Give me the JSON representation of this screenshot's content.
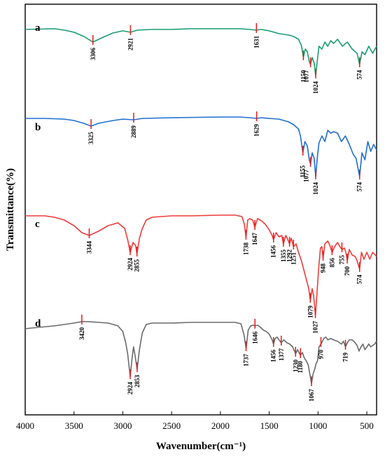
{
  "chart_data": {
    "type": "line",
    "title": "",
    "xlabel": "Wavenumber(cm⁻¹)",
    "ylabel": "Transmittance(%)",
    "xlim": [
      4000,
      400
    ],
    "x_ticks": [
      "4000",
      "3500",
      "3000",
      "2500",
      "2000",
      "1500",
      "1000",
      "500"
    ],
    "grid": false,
    "legend": "none",
    "series": [
      {
        "name": "a",
        "color": "#1a9e6e",
        "peaks": [
          "3306",
          "2921",
          "1631",
          "1150",
          "1077",
          "1024",
          "574"
        ],
        "points": [
          [
            4000,
            12
          ],
          [
            3700,
            11
          ],
          [
            3600,
            13
          ],
          [
            3500,
            16
          ],
          [
            3400,
            22
          ],
          [
            3306,
            30
          ],
          [
            3200,
            23
          ],
          [
            3100,
            17
          ],
          [
            3000,
            14
          ],
          [
            2921,
            16
          ],
          [
            2850,
            13
          ],
          [
            2700,
            12
          ],
          [
            2500,
            12
          ],
          [
            2300,
            11
          ],
          [
            2000,
            11
          ],
          [
            1800,
            11
          ],
          [
            1700,
            12
          ],
          [
            1631,
            13
          ],
          [
            1580,
            12
          ],
          [
            1500,
            14
          ],
          [
            1400,
            18
          ],
          [
            1300,
            20
          ],
          [
            1250,
            22
          ],
          [
            1200,
            26
          ],
          [
            1170,
            35
          ],
          [
            1150,
            52
          ],
          [
            1130,
            40
          ],
          [
            1110,
            44
          ],
          [
            1090,
            58
          ],
          [
            1077,
            62
          ],
          [
            1060,
            52
          ],
          [
            1040,
            60
          ],
          [
            1024,
            78
          ],
          [
            1005,
            54
          ],
          [
            990,
            36
          ],
          [
            960,
            40
          ],
          [
            930,
            30
          ],
          [
            900,
            36
          ],
          [
            870,
            28
          ],
          [
            840,
            32
          ],
          [
            800,
            26
          ],
          [
            750,
            36
          ],
          [
            700,
            30
          ],
          [
            650,
            40
          ],
          [
            600,
            46
          ],
          [
            574,
            62
          ],
          [
            550,
            44
          ],
          [
            520,
            48
          ],
          [
            480,
            36
          ],
          [
            440,
            46
          ],
          [
            400,
            36
          ]
        ]
      },
      {
        "name": "b",
        "color": "#1f6fcf",
        "peaks": [
          "3325",
          "2889",
          "1629",
          "1155",
          "1077",
          "1024",
          "574"
        ],
        "points": [
          [
            4000,
            9
          ],
          [
            3800,
            9
          ],
          [
            3600,
            10
          ],
          [
            3500,
            12
          ],
          [
            3400,
            16
          ],
          [
            3325,
            20
          ],
          [
            3250,
            16
          ],
          [
            3100,
            12
          ],
          [
            3000,
            10
          ],
          [
            2889,
            11
          ],
          [
            2800,
            9
          ],
          [
            2500,
            8
          ],
          [
            2000,
            7
          ],
          [
            1800,
            7
          ],
          [
            1700,
            8
          ],
          [
            1629,
            9
          ],
          [
            1580,
            8
          ],
          [
            1500,
            9
          ],
          [
            1400,
            10
          ],
          [
            1300,
            14
          ],
          [
            1250,
            18
          ],
          [
            1200,
            24
          ],
          [
            1180,
            34
          ],
          [
            1155,
            58
          ],
          [
            1135,
            42
          ],
          [
            1110,
            48
          ],
          [
            1090,
            68
          ],
          [
            1077,
            74
          ],
          [
            1060,
            58
          ],
          [
            1040,
            66
          ],
          [
            1024,
            92
          ],
          [
            1005,
            62
          ],
          [
            990,
            44
          ],
          [
            960,
            34
          ],
          [
            930,
            42
          ],
          [
            900,
            26
          ],
          [
            870,
            30
          ],
          [
            840,
            28
          ],
          [
            800,
            30
          ],
          [
            760,
            42
          ],
          [
            720,
            34
          ],
          [
            680,
            46
          ],
          [
            640,
            60
          ],
          [
            610,
            66
          ],
          [
            574,
            92
          ],
          [
            550,
            58
          ],
          [
            520,
            68
          ],
          [
            490,
            42
          ],
          [
            460,
            56
          ],
          [
            430,
            46
          ],
          [
            400,
            54
          ]
        ]
      },
      {
        "name": "c",
        "color": "#ee3b3b",
        "peaks": [
          "3344",
          "2924",
          "2855",
          "1738",
          "1647",
          "1456",
          "1355",
          "1292",
          "1251",
          "1079",
          "1027",
          "948",
          "856",
          "755",
          "700",
          "574"
        ],
        "points": [
          [
            4000,
            8
          ],
          [
            3800,
            8
          ],
          [
            3700,
            10
          ],
          [
            3600,
            14
          ],
          [
            3500,
            22
          ],
          [
            3420,
            32
          ],
          [
            3344,
            36
          ],
          [
            3250,
            30
          ],
          [
            3150,
            22
          ],
          [
            3050,
            18
          ],
          [
            2980,
            26
          ],
          [
            2950,
            42
          ],
          [
            2924,
            60
          ],
          [
            2895,
            46
          ],
          [
            2870,
            50
          ],
          [
            2855,
            62
          ],
          [
            2830,
            40
          ],
          [
            2800,
            26
          ],
          [
            2760,
            14
          ],
          [
            2700,
            10
          ],
          [
            2500,
            8
          ],
          [
            2300,
            8
          ],
          [
            2000,
            7
          ],
          [
            1850,
            7
          ],
          [
            1780,
            9
          ],
          [
            1755,
            20
          ],
          [
            1738,
            38
          ],
          [
            1720,
            14
          ],
          [
            1700,
            12
          ],
          [
            1670,
            14
          ],
          [
            1647,
            24
          ],
          [
            1620,
            12
          ],
          [
            1580,
            15
          ],
          [
            1540,
            20
          ],
          [
            1500,
            28
          ],
          [
            1470,
            36
          ],
          [
            1456,
            42
          ],
          [
            1430,
            32
          ],
          [
            1400,
            38
          ],
          [
            1370,
            36
          ],
          [
            1355,
            48
          ],
          [
            1330,
            36
          ],
          [
            1310,
            42
          ],
          [
            1292,
            48
          ],
          [
            1275,
            40
          ],
          [
            1251,
            52
          ],
          [
            1225,
            48
          ],
          [
            1200,
            60
          ],
          [
            1170,
            72
          ],
          [
            1140,
            88
          ],
          [
            1110,
            104
          ],
          [
            1095,
            112
          ],
          [
            1079,
            128
          ],
          [
            1060,
            112
          ],
          [
            1045,
            122
          ],
          [
            1027,
            150
          ],
          [
            1010,
            118
          ],
          [
            995,
            86
          ],
          [
            975,
            54
          ],
          [
            960,
            52
          ],
          [
            948,
            68
          ],
          [
            930,
            48
          ],
          [
            900,
            44
          ],
          [
            880,
            50
          ],
          [
            856,
            60
          ],
          [
            830,
            52
          ],
          [
            800,
            46
          ],
          [
            775,
            52
          ],
          [
            755,
            56
          ],
          [
            730,
            54
          ],
          [
            715,
            60
          ],
          [
            700,
            72
          ],
          [
            680,
            56
          ],
          [
            650,
            64
          ],
          [
            620,
            66
          ],
          [
            600,
            72
          ],
          [
            574,
            84
          ],
          [
            555,
            60
          ],
          [
            530,
            70
          ],
          [
            500,
            60
          ],
          [
            470,
            70
          ],
          [
            440,
            60
          ],
          [
            400,
            66
          ]
        ]
      },
      {
        "name": "d",
        "color": "#6b6b6b",
        "peaks": [
          "3420",
          "2924",
          "2853",
          "1737",
          "1646",
          "1456",
          "1377",
          "1230",
          "1180",
          "1067",
          "970",
          "719"
        ],
        "points": [
          [
            4000,
            14
          ],
          [
            3850,
            12
          ],
          [
            3700,
            10
          ],
          [
            3600,
            8
          ],
          [
            3500,
            6
          ],
          [
            3420,
            4
          ],
          [
            3350,
            4
          ],
          [
            3250,
            5
          ],
          [
            3150,
            6
          ],
          [
            3050,
            10
          ],
          [
            3000,
            18
          ],
          [
            2970,
            34
          ],
          [
            2950,
            50
          ],
          [
            2924,
            82
          ],
          [
            2905,
            56
          ],
          [
            2890,
            40
          ],
          [
            2875,
            52
          ],
          [
            2853,
            72
          ],
          [
            2830,
            44
          ],
          [
            2800,
            20
          ],
          [
            2760,
            8
          ],
          [
            2700,
            6
          ],
          [
            2500,
            6
          ],
          [
            2300,
            5
          ],
          [
            2000,
            5
          ],
          [
            1850,
            5
          ],
          [
            1790,
            7
          ],
          [
            1760,
            22
          ],
          [
            1737,
            42
          ],
          [
            1715,
            16
          ],
          [
            1690,
            10
          ],
          [
            1665,
            9
          ],
          [
            1646,
            10
          ],
          [
            1620,
            9
          ],
          [
            1590,
            12
          ],
          [
            1560,
            16
          ],
          [
            1530,
            18
          ],
          [
            1500,
            22
          ],
          [
            1470,
            30
          ],
          [
            1456,
            36
          ],
          [
            1440,
            28
          ],
          [
            1420,
            26
          ],
          [
            1400,
            30
          ],
          [
            1377,
            34
          ],
          [
            1350,
            30
          ],
          [
            1320,
            34
          ],
          [
            1290,
            36
          ],
          [
            1260,
            40
          ],
          [
            1230,
            50
          ],
          [
            1210,
            44
          ],
          [
            1195,
            48
          ],
          [
            1180,
            52
          ],
          [
            1160,
            48
          ],
          [
            1140,
            56
          ],
          [
            1120,
            60
          ],
          [
            1100,
            66
          ],
          [
            1085,
            78
          ],
          [
            1067,
            92
          ],
          [
            1050,
            78
          ],
          [
            1035,
            72
          ],
          [
            1020,
            64
          ],
          [
            1005,
            60
          ],
          [
            990,
            40
          ],
          [
            970,
            36
          ],
          [
            955,
            32
          ],
          [
            940,
            28
          ],
          [
            920,
            26
          ],
          [
            900,
            30
          ],
          [
            870,
            28
          ],
          [
            840,
            30
          ],
          [
            800,
            32
          ],
          [
            780,
            34
          ],
          [
            760,
            36
          ],
          [
            740,
            32
          ],
          [
            719,
            40
          ],
          [
            700,
            34
          ],
          [
            680,
            30
          ],
          [
            650,
            30
          ],
          [
            620,
            34
          ],
          [
            600,
            38
          ],
          [
            580,
            46
          ],
          [
            560,
            40
          ],
          [
            540,
            36
          ],
          [
            520,
            44
          ],
          [
            500,
            40
          ],
          [
            480,
            36
          ],
          [
            460,
            40
          ],
          [
            440,
            38
          ],
          [
            420,
            36
          ],
          [
            400,
            32
          ]
        ]
      }
    ]
  }
}
